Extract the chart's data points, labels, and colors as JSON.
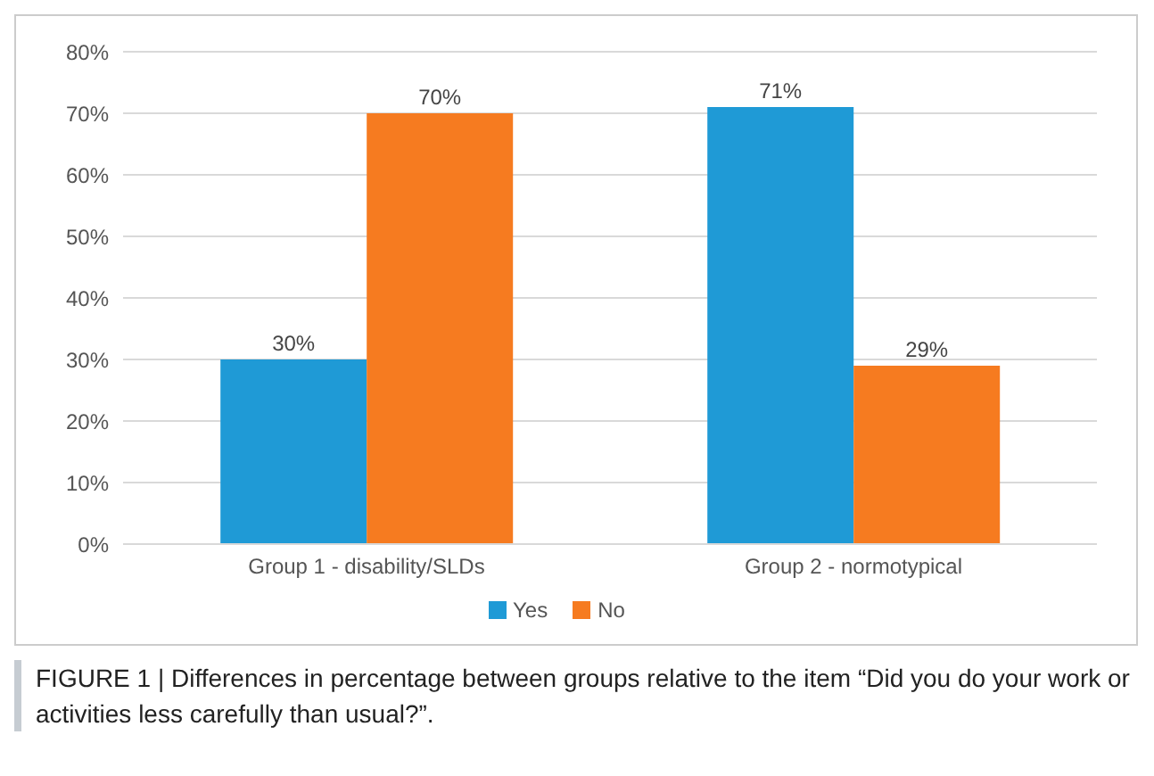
{
  "chart_data": {
    "type": "bar",
    "categories": [
      "Group 1 - disability/SLDs",
      "Group 2 - normotypical"
    ],
    "series": [
      {
        "name": "Yes",
        "color": "#1f9ad6",
        "values": [
          30,
          71
        ],
        "value_labels": [
          "30%",
          "71%"
        ]
      },
      {
        "name": "No",
        "color": "#f67b20",
        "values": [
          70,
          29
        ],
        "value_labels": [
          "70%",
          "29%"
        ]
      }
    ],
    "ylim": [
      0,
      80
    ],
    "yticks": [
      {
        "value": 0,
        "label": "0%"
      },
      {
        "value": 10,
        "label": "10%"
      },
      {
        "value": 20,
        "label": "20%"
      },
      {
        "value": 30,
        "label": "30%"
      },
      {
        "value": 40,
        "label": "40%"
      },
      {
        "value": 50,
        "label": "50%"
      },
      {
        "value": 60,
        "label": "60%"
      },
      {
        "value": 70,
        "label": "70%"
      },
      {
        "value": 80,
        "label": "80%"
      }
    ],
    "grid": "y",
    "legend": "bottom",
    "annotations": [
      "FIGURE 1 | Differences in percentage between groups relative to the item “Did you do your work or activities less carefully than usual?”."
    ]
  }
}
